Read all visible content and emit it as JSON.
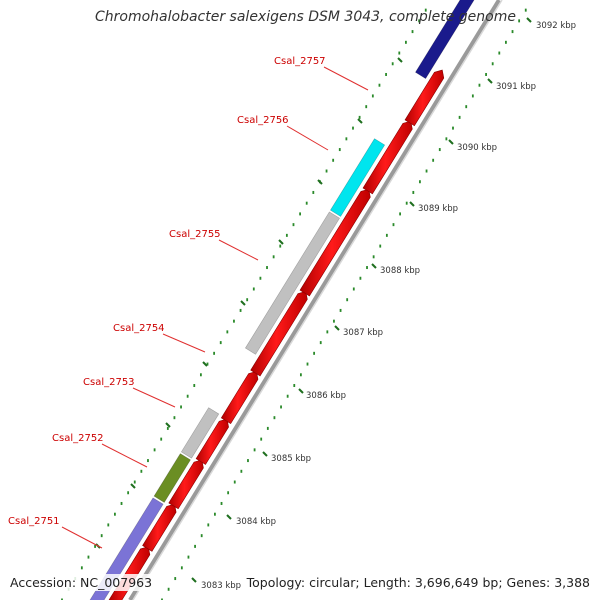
{
  "title": "Chromohalobacter salexigens DSM 3043, complete genome",
  "footer": {
    "accession": "Accession: NC_007963",
    "summary": "Topology: circular; Length: 3,696,649 bp; Genes: 3,388"
  },
  "colors": {
    "forward_strand_default": "#ff0000",
    "gene_label": "#cc0000",
    "tick_dots": "#2a8a2a",
    "backbone": "#888888"
  },
  "scale_labels": [
    "3083 kbp",
    "3084 kbp",
    "3085 kbp",
    "3086 kbp",
    "3087 kbp",
    "3088 kbp",
    "3089 kbp",
    "3090 kbp",
    "3091 kbp",
    "3092 kbp"
  ],
  "gene_labels": [
    {
      "name": "Csal_2751",
      "color": "#7b73d6"
    },
    {
      "name": "Csal_2752",
      "color": "#6b8e23"
    },
    {
      "name": "Csal_2753",
      "color": "#c0c0c0"
    },
    {
      "name": "Csal_2754",
      "color": "#c0c0c0"
    },
    {
      "name": "Csal_2755",
      "color": "#c0c0c0"
    },
    {
      "name": "Csal_2756",
      "color": "#00e5ee"
    },
    {
      "name": "Csal_2757",
      "color": "#1a1a8c"
    }
  ]
}
